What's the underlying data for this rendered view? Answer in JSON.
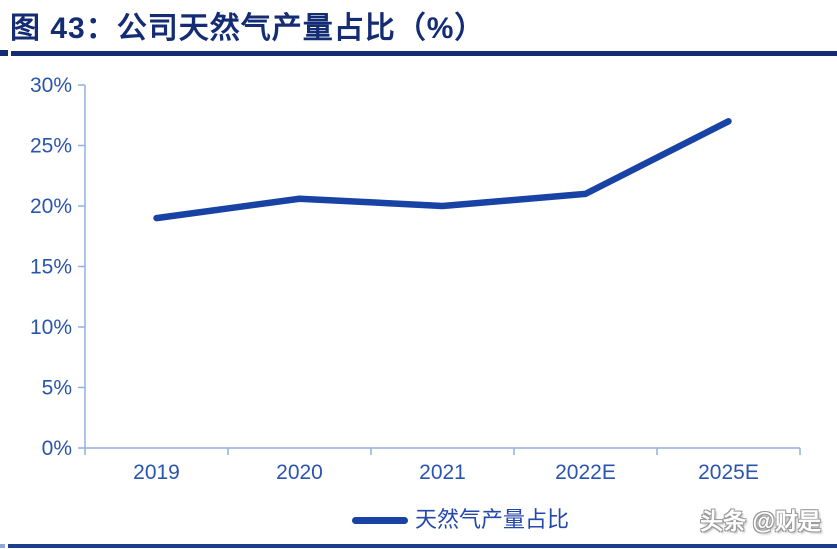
{
  "header": {
    "title": "图 43：公司天然气产量占比（%）"
  },
  "legend": {
    "label": "天然气产量占比"
  },
  "watermark": "头条 @财是",
  "colors": {
    "title": "#142C74",
    "line": "#1843A5",
    "axis_labels": "#2A55AE",
    "axis_line": "#93B1DD",
    "bottom_rule": "#1C3E8E"
  },
  "chart_data": {
    "type": "line",
    "title": "公司天然气产量占比（%）",
    "categories": [
      "2019",
      "2020",
      "2021",
      "2022E",
      "2025E"
    ],
    "series": [
      {
        "name": "天然气产量占比",
        "values": [
          19,
          20.6,
          20,
          21,
          27
        ]
      }
    ],
    "xlabel": "",
    "ylabel": "",
    "ylim": [
      0,
      30
    ],
    "ytick_step": 5,
    "ytick_format": "percent",
    "grid": false,
    "legend_position": "bottom"
  }
}
